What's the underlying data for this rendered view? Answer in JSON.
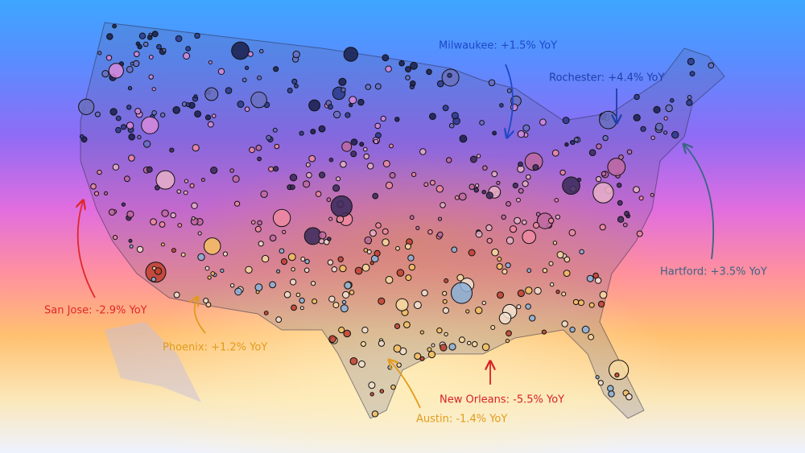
{
  "annotations": [
    {
      "label": "Milwaukee: +1.5% YoY",
      "color": "#1f48c8"
    },
    {
      "label": "Rochester: +4.4% YoY",
      "color": "#1f3fa8"
    },
    {
      "label": "Hartford: +3.5% YoY",
      "color": "#3b6585"
    },
    {
      "label": "San Jose: -2.9% YoY",
      "color": "#e0262a"
    },
    {
      "label": "Phoenix: +1.2% YoY",
      "color": "#e39a1c"
    },
    {
      "label": "New Orleans: -5.5% YoY",
      "color": "#d8202a"
    },
    {
      "label": "Austin: -1.4% YoY",
      "color": "#e39a1c"
    }
  ]
}
